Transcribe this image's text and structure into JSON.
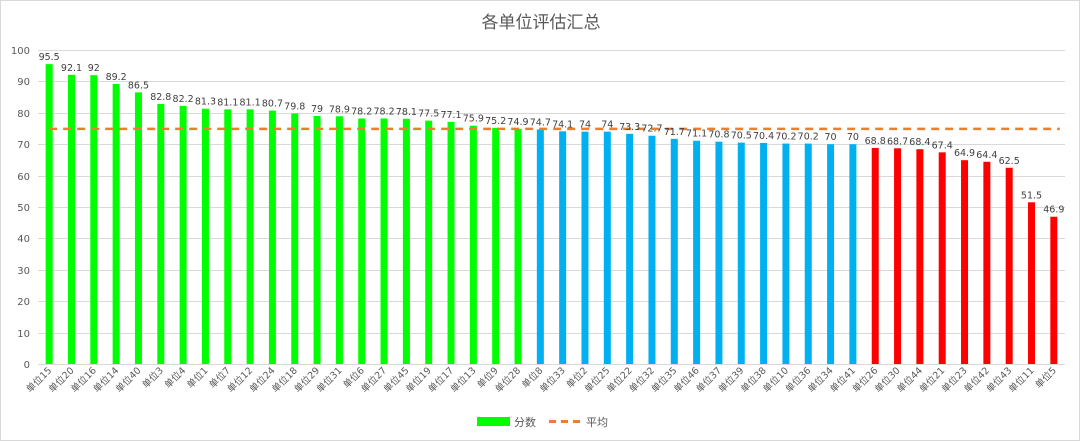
{
  "chart_data": {
    "type": "bar",
    "title": "各单位评估汇总",
    "xlabel": "",
    "ylabel": "",
    "ylim": [
      0,
      100
    ],
    "yticks": [
      0,
      10,
      20,
      30,
      40,
      50,
      60,
      70,
      80,
      90,
      100
    ],
    "grid": true,
    "legend_position": "bottom",
    "categories": [
      "单位15",
      "单位20",
      "单位16",
      "单位14",
      "单位40",
      "单位3",
      "单位4",
      "单位1",
      "单位7",
      "单位12",
      "单位24",
      "单位18",
      "单位29",
      "单位31",
      "单位6",
      "单位27",
      "单位45",
      "单位19",
      "单位17",
      "单位13",
      "单位9",
      "单位28",
      "单位8",
      "单位33",
      "单位2",
      "单位25",
      "单位22",
      "单位32",
      "单位35",
      "单位46",
      "单位37",
      "单位39",
      "单位38",
      "单位10",
      "单位36",
      "单位34",
      "单位41",
      "单位26",
      "单位30",
      "单位44",
      "单位21",
      "单位23",
      "单位42",
      "单位43",
      "单位11",
      "单位5"
    ],
    "values": [
      95.5,
      92.1,
      92,
      89.2,
      86.5,
      82.8,
      82.2,
      81.3,
      81.1,
      81.1,
      80.7,
      79.8,
      79,
      78.9,
      78.2,
      78.2,
      78.1,
      77.5,
      77.1,
      75.9,
      75.2,
      74.9,
      74.7,
      74.1,
      74,
      74,
      73.3,
      72.7,
      71.7,
      71.1,
      70.8,
      70.5,
      70.4,
      70.2,
      70.2,
      70,
      70,
      68.8,
      68.7,
      68.4,
      67.4,
      64.9,
      64.4,
      62.5,
      51.5,
      46.9
    ],
    "colors": [
      "#00ff00",
      "#00ff00",
      "#00ff00",
      "#00ff00",
      "#00ff00",
      "#00ff00",
      "#00ff00",
      "#00ff00",
      "#00ff00",
      "#00ff00",
      "#00ff00",
      "#00ff00",
      "#00ff00",
      "#00ff00",
      "#00ff00",
      "#00ff00",
      "#00ff00",
      "#00ff00",
      "#00ff00",
      "#00ff00",
      "#00ff00",
      "#00ff00",
      "#00b0f0",
      "#00b0f0",
      "#00b0f0",
      "#00b0f0",
      "#00b0f0",
      "#00b0f0",
      "#00b0f0",
      "#00b0f0",
      "#00b0f0",
      "#00b0f0",
      "#00b0f0",
      "#00b0f0",
      "#00b0f0",
      "#00b0f0",
      "#00b0f0",
      "#ff0000",
      "#ff0000",
      "#ff0000",
      "#ff0000",
      "#ff0000",
      "#ff0000",
      "#ff0000",
      "#ff0000",
      "#ff0000"
    ],
    "average": 74.9,
    "average_color": "#ed7d31",
    "legend": [
      {
        "name": "分数",
        "color": "#00ff00",
        "style": "bar"
      },
      {
        "name": "平均",
        "color": "#ed7d31",
        "style": "dashed-line"
      }
    ]
  }
}
